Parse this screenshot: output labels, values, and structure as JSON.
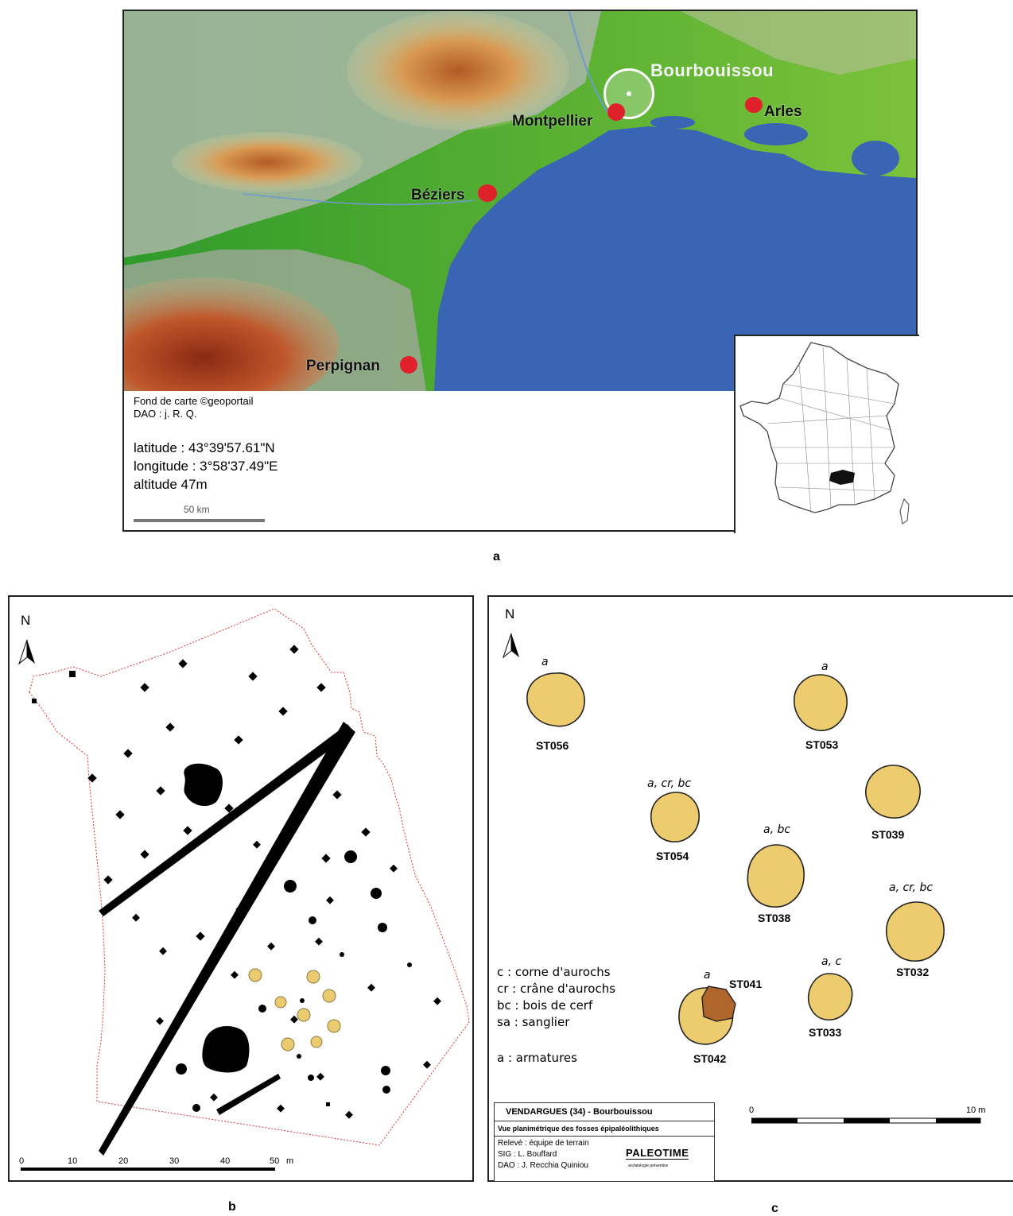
{
  "map": {
    "cities": [
      {
        "name": "Montpellier"
      },
      {
        "name": "Arles"
      },
      {
        "name": "Béziers"
      },
      {
        "name": "Perpignan"
      }
    ],
    "site_label": "Bourbouissou",
    "credit_line1": "Fond de carte ©geoportail",
    "credit_line2": "DAO : j. R. Q.",
    "latitude": "latitude :  43°39'57.61\"N",
    "longitude": "longitude :   3°58'37.49\"E",
    "altitude": "altitude 47m",
    "scale_label": "50 km",
    "colors": {
      "sea": "#3a64b4",
      "lowland": "#3fae2e",
      "highland": "#c86a2c",
      "city": "#e0202a"
    }
  },
  "captions": {
    "a": "a",
    "b": "b",
    "c": "c"
  },
  "plan_b": {
    "north": "N",
    "scale_ticks": [
      "0",
      "10",
      "20",
      "30",
      "40",
      "50"
    ],
    "scale_unit": "m"
  },
  "plan_c": {
    "north": "N",
    "features": [
      {
        "id": "ST056",
        "tag": "a"
      },
      {
        "id": "ST053",
        "tag": "a"
      },
      {
        "id": "ST054",
        "tag": "a, cr, bc"
      },
      {
        "id": "ST039",
        "tag": ""
      },
      {
        "id": "ST038",
        "tag": "a, bc"
      },
      {
        "id": "ST032",
        "tag": "a, cr, bc"
      },
      {
        "id": "ST033",
        "tag": "a, c"
      },
      {
        "id": "ST042",
        "tag": "a"
      },
      {
        "id": "ST041",
        "tag": ""
      }
    ],
    "legend": [
      "c : corne d'aurochs",
      "cr : crâne d'aurochs",
      "bc : bois de cerf",
      "sa : sanglier",
      "a : armatures"
    ],
    "scale_start": "0",
    "scale_end": "10 m",
    "title": "VENDARGUES (34) - Bourbouissou",
    "subtitle": "Vue planimétrique des fosses épipaléolithiques",
    "credits": [
      "Relevé : équipe de terrain",
      "SIG : L. Bouffard",
      "DAO : J. Recchia Quiniou"
    ],
    "logo": "PALEOTIME",
    "logo_sub": "archéologie préventive"
  }
}
